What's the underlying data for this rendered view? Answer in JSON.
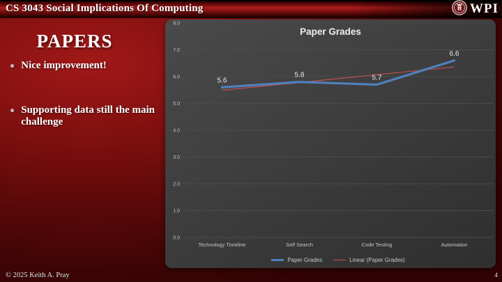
{
  "header": {
    "title": "CS 3043 Social Implications Of Computing",
    "logo_text": "WPI"
  },
  "slide": {
    "title": "PAPERS",
    "bullets": [
      "Nice improvement!",
      "Supporting data still the main challenge"
    ]
  },
  "footer": {
    "copyright": "© 2025 Keith A. Pray",
    "page_number": "4"
  },
  "colors": {
    "brand_red": "#8e1414",
    "dark_red": "#420505",
    "chart_panel_bg": "#3d3d3d",
    "gridline": "#4b4b4b",
    "series_blue": "#4f81bd",
    "trend_red": "#c0504d"
  },
  "chart_data": {
    "type": "line",
    "title": "Paper Grades",
    "categories": [
      "Technology Timeline",
      "Self Search",
      "Code Testing",
      "Automation"
    ],
    "series": [
      {
        "name": "Paper Grades",
        "values": [
          5.6,
          5.8,
          5.7,
          6.6
        ],
        "color": "#4f81bd"
      }
    ],
    "trendline": {
      "name": "Linear (Paper Grades)",
      "start": 5.49,
      "end": 6.36,
      "color": "#c0504d"
    },
    "data_labels": [
      "5.6",
      "5.8",
      "5.7",
      "6.6"
    ],
    "ylim": [
      0,
      8
    ],
    "ytick_step": 1,
    "ytick_labels": [
      "0.0",
      "1.0",
      "2.0",
      "3.0",
      "4.0",
      "5.0",
      "6.0",
      "7.0",
      "8.0"
    ],
    "grid": true,
    "legend_position": "bottom"
  }
}
